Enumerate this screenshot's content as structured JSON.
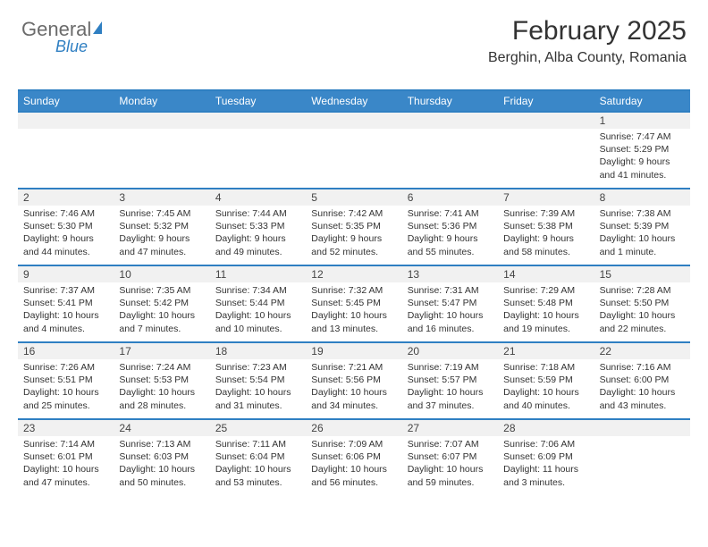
{
  "logo": {
    "general": "General",
    "blue": "Blue"
  },
  "title": "February 2025",
  "subtitle": "Berghin, Alba County, Romania",
  "colors": {
    "header_bg": "#3a87c8",
    "header_border": "#2f7fc2",
    "daynum_bg": "#f1f1f1",
    "text": "#333333",
    "logo_blue": "#2f7fc2",
    "background": "#ffffff"
  },
  "typography": {
    "title_fontsize": 30,
    "subtitle_fontsize": 16,
    "dayhead_fontsize": 12,
    "detail_fontsize": 10.5
  },
  "days_of_week": [
    "Sunday",
    "Monday",
    "Tuesday",
    "Wednesday",
    "Thursday",
    "Friday",
    "Saturday"
  ],
  "weeks": [
    [
      null,
      null,
      null,
      null,
      null,
      null,
      {
        "n": "1",
        "sr": "Sunrise: 7:47 AM",
        "ss": "Sunset: 5:29 PM",
        "dl": "Daylight: 9 hours and 41 minutes."
      }
    ],
    [
      {
        "n": "2",
        "sr": "Sunrise: 7:46 AM",
        "ss": "Sunset: 5:30 PM",
        "dl": "Daylight: 9 hours and 44 minutes."
      },
      {
        "n": "3",
        "sr": "Sunrise: 7:45 AM",
        "ss": "Sunset: 5:32 PM",
        "dl": "Daylight: 9 hours and 47 minutes."
      },
      {
        "n": "4",
        "sr": "Sunrise: 7:44 AM",
        "ss": "Sunset: 5:33 PM",
        "dl": "Daylight: 9 hours and 49 minutes."
      },
      {
        "n": "5",
        "sr": "Sunrise: 7:42 AM",
        "ss": "Sunset: 5:35 PM",
        "dl": "Daylight: 9 hours and 52 minutes."
      },
      {
        "n": "6",
        "sr": "Sunrise: 7:41 AM",
        "ss": "Sunset: 5:36 PM",
        "dl": "Daylight: 9 hours and 55 minutes."
      },
      {
        "n": "7",
        "sr": "Sunrise: 7:39 AM",
        "ss": "Sunset: 5:38 PM",
        "dl": "Daylight: 9 hours and 58 minutes."
      },
      {
        "n": "8",
        "sr": "Sunrise: 7:38 AM",
        "ss": "Sunset: 5:39 PM",
        "dl": "Daylight: 10 hours and 1 minute."
      }
    ],
    [
      {
        "n": "9",
        "sr": "Sunrise: 7:37 AM",
        "ss": "Sunset: 5:41 PM",
        "dl": "Daylight: 10 hours and 4 minutes."
      },
      {
        "n": "10",
        "sr": "Sunrise: 7:35 AM",
        "ss": "Sunset: 5:42 PM",
        "dl": "Daylight: 10 hours and 7 minutes."
      },
      {
        "n": "11",
        "sr": "Sunrise: 7:34 AM",
        "ss": "Sunset: 5:44 PM",
        "dl": "Daylight: 10 hours and 10 minutes."
      },
      {
        "n": "12",
        "sr": "Sunrise: 7:32 AM",
        "ss": "Sunset: 5:45 PM",
        "dl": "Daylight: 10 hours and 13 minutes."
      },
      {
        "n": "13",
        "sr": "Sunrise: 7:31 AM",
        "ss": "Sunset: 5:47 PM",
        "dl": "Daylight: 10 hours and 16 minutes."
      },
      {
        "n": "14",
        "sr": "Sunrise: 7:29 AM",
        "ss": "Sunset: 5:48 PM",
        "dl": "Daylight: 10 hours and 19 minutes."
      },
      {
        "n": "15",
        "sr": "Sunrise: 7:28 AM",
        "ss": "Sunset: 5:50 PM",
        "dl": "Daylight: 10 hours and 22 minutes."
      }
    ],
    [
      {
        "n": "16",
        "sr": "Sunrise: 7:26 AM",
        "ss": "Sunset: 5:51 PM",
        "dl": "Daylight: 10 hours and 25 minutes."
      },
      {
        "n": "17",
        "sr": "Sunrise: 7:24 AM",
        "ss": "Sunset: 5:53 PM",
        "dl": "Daylight: 10 hours and 28 minutes."
      },
      {
        "n": "18",
        "sr": "Sunrise: 7:23 AM",
        "ss": "Sunset: 5:54 PM",
        "dl": "Daylight: 10 hours and 31 minutes."
      },
      {
        "n": "19",
        "sr": "Sunrise: 7:21 AM",
        "ss": "Sunset: 5:56 PM",
        "dl": "Daylight: 10 hours and 34 minutes."
      },
      {
        "n": "20",
        "sr": "Sunrise: 7:19 AM",
        "ss": "Sunset: 5:57 PM",
        "dl": "Daylight: 10 hours and 37 minutes."
      },
      {
        "n": "21",
        "sr": "Sunrise: 7:18 AM",
        "ss": "Sunset: 5:59 PM",
        "dl": "Daylight: 10 hours and 40 minutes."
      },
      {
        "n": "22",
        "sr": "Sunrise: 7:16 AM",
        "ss": "Sunset: 6:00 PM",
        "dl": "Daylight: 10 hours and 43 minutes."
      }
    ],
    [
      {
        "n": "23",
        "sr": "Sunrise: 7:14 AM",
        "ss": "Sunset: 6:01 PM",
        "dl": "Daylight: 10 hours and 47 minutes."
      },
      {
        "n": "24",
        "sr": "Sunrise: 7:13 AM",
        "ss": "Sunset: 6:03 PM",
        "dl": "Daylight: 10 hours and 50 minutes."
      },
      {
        "n": "25",
        "sr": "Sunrise: 7:11 AM",
        "ss": "Sunset: 6:04 PM",
        "dl": "Daylight: 10 hours and 53 minutes."
      },
      {
        "n": "26",
        "sr": "Sunrise: 7:09 AM",
        "ss": "Sunset: 6:06 PM",
        "dl": "Daylight: 10 hours and 56 minutes."
      },
      {
        "n": "27",
        "sr": "Sunrise: 7:07 AM",
        "ss": "Sunset: 6:07 PM",
        "dl": "Daylight: 10 hours and 59 minutes."
      },
      {
        "n": "28",
        "sr": "Sunrise: 7:06 AM",
        "ss": "Sunset: 6:09 PM",
        "dl": "Daylight: 11 hours and 3 minutes."
      },
      null
    ]
  ]
}
